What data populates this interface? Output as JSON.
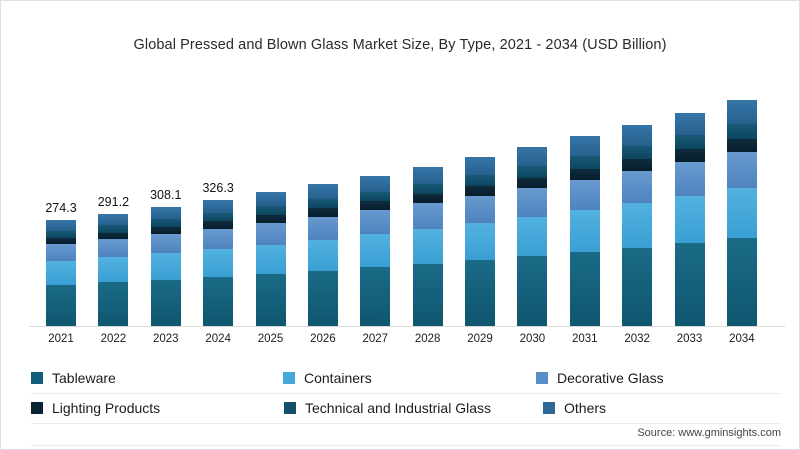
{
  "title": "Global Pressed and Blown Glass Market Size, By Type, 2021 - 2034 (USD Billion)",
  "source": "Source: www.gminsights.com",
  "chart_data": {
    "type": "bar",
    "stacked": true,
    "title": "Global Pressed and Blown Glass Market Size, By Type, 2021 - 2034 (USD Billion)",
    "xlabel": "",
    "ylabel": "USD Billion",
    "ylim": [
      0,
      660
    ],
    "grid": false,
    "legend_position": "bottom",
    "categories": [
      "2021",
      "2022",
      "2023",
      "2024",
      "2025",
      "2026",
      "2027",
      "2028",
      "2029",
      "2030",
      "2031",
      "2032",
      "2033",
      "2034"
    ],
    "data_labels": [
      "274.3",
      "291.2",
      "308.1",
      "326.3",
      "",
      "",
      "",
      "",
      "",
      "",
      "",
      "",
      "",
      ""
    ],
    "totals_estimated": [
      274.3,
      291.2,
      308.1,
      326.3,
      345.9,
      366.7,
      388.7,
      412.0,
      436.7,
      462.9,
      490.7,
      520.1,
      551.3,
      584.4
    ],
    "series": [
      {
        "name": "Tableware",
        "color": "#135f79",
        "gradient": [
          "#1a6b87",
          "#0f566f"
        ],
        "values": [
          107.0,
          113.6,
          120.2,
          127.3,
          134.9,
          143.0,
          151.6,
          160.7,
          170.3,
          180.5,
          191.4,
          202.8,
          215.0,
          227.9
        ]
      },
      {
        "name": "Containers",
        "color": "#44a8da",
        "gradient": [
          "#52b1e0",
          "#3a9fd3"
        ],
        "values": [
          60.3,
          64.1,
          67.8,
          71.8,
          76.1,
          80.7,
          85.5,
          90.6,
          96.1,
          101.8,
          108.0,
          114.4,
          121.3,
          128.6
        ]
      },
      {
        "name": "Decorative Glass",
        "color": "#5a8ec6",
        "gradient": [
          "#689ad0",
          "#4e83bd"
        ],
        "values": [
          43.9,
          46.6,
          49.3,
          52.2,
          55.3,
          58.7,
          62.2,
          65.9,
          69.9,
          74.1,
          78.5,
          83.2,
          88.2,
          93.5
        ]
      },
      {
        "name": "Lighting Products",
        "color": "#0b2433",
        "gradient": [
          "#0e2c3e",
          "#081d2b"
        ],
        "values": [
          16.5,
          17.5,
          18.5,
          19.6,
          20.8,
          22.0,
          23.3,
          24.7,
          26.2,
          27.8,
          29.4,
          31.2,
          33.1,
          35.1
        ]
      },
      {
        "name": "Technical and Industrial Glass",
        "color": "#124f6c",
        "gradient": [
          "#175a77",
          "#0e455f"
        ],
        "values": [
          17.8,
          18.9,
          20.0,
          21.2,
          22.5,
          23.8,
          25.3,
          26.8,
          28.4,
          30.1,
          31.9,
          33.8,
          35.8,
          38.0
        ]
      },
      {
        "name": "Others",
        "color": "#2d6897",
        "gradient": [
          "#3676a8",
          "#27608d"
        ],
        "values": [
          28.8,
          30.5,
          32.3,
          34.2,
          36.3,
          38.5,
          40.8,
          43.3,
          45.8,
          48.6,
          51.5,
          54.7,
          57.9,
          61.3
        ]
      }
    ]
  }
}
